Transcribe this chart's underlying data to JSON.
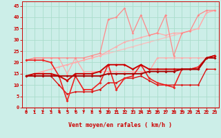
{
  "xlabel": "Vent moyen/en rafales ( km/h )",
  "background_color": "#cceee8",
  "grid_color": "#aaddcc",
  "x": [
    0,
    1,
    2,
    3,
    4,
    5,
    6,
    7,
    8,
    9,
    10,
    11,
    12,
    13,
    14,
    15,
    16,
    17,
    18,
    19,
    20,
    21,
    22,
    23
  ],
  "series": [
    {
      "y": [
        14,
        15,
        16,
        17,
        18,
        19,
        20,
        21,
        22,
        23,
        24,
        25,
        26,
        27,
        28,
        29,
        30,
        31,
        32,
        33,
        34,
        35,
        42,
        43
      ],
      "color": "#ffbbbb",
      "lw": 0.9,
      "marker": "D",
      "ms": 1.8,
      "zorder": 1
    },
    {
      "y": [
        14,
        15,
        16,
        17,
        18,
        19,
        20,
        21,
        22,
        23,
        25,
        27,
        29,
        30,
        31,
        32,
        33,
        32,
        33,
        33,
        34,
        35,
        42,
        43
      ],
      "color": "#ffaaaa",
      "lw": 0.9,
      "marker": "D",
      "ms": 1.8,
      "zorder": 2
    },
    {
      "y": [
        21,
        22,
        22,
        22,
        22,
        22,
        22,
        22,
        23,
        24,
        39,
        40,
        44,
        33,
        41,
        32,
        33,
        41,
        23,
        33,
        34,
        41,
        43,
        43
      ],
      "color": "#ff8888",
      "lw": 0.9,
      "marker": "D",
      "ms": 1.8,
      "zorder": 3
    },
    {
      "y": [
        21,
        22,
        22,
        22,
        22,
        15,
        22,
        16,
        16,
        16,
        16,
        16,
        16,
        16,
        16,
        16,
        22,
        22,
        22,
        22,
        22,
        22,
        22,
        22
      ],
      "color": "#ffaaaa",
      "lw": 0.9,
      "marker": "D",
      "ms": 1.8,
      "zorder": 2
    },
    {
      "y": [
        14,
        15,
        15,
        15,
        14,
        12,
        15,
        15,
        15,
        16,
        19,
        19,
        19,
        17,
        19,
        17,
        17,
        17,
        17,
        17,
        17,
        17,
        22,
        23
      ],
      "color": "#cc0000",
      "lw": 1.4,
      "marker": "D",
      "ms": 2.0,
      "zorder": 5
    },
    {
      "y": [
        14,
        14,
        14,
        14,
        14,
        14,
        14,
        14,
        14,
        14,
        15,
        15,
        15,
        15,
        15,
        16,
        16,
        16,
        16,
        17,
        17,
        17,
        22,
        22
      ],
      "color": "#aa0000",
      "lw": 1.4,
      "marker": "D",
      "ms": 2.0,
      "zorder": 5
    },
    {
      "y": [
        21,
        21,
        21,
        20,
        14,
        3,
        14,
        8,
        8,
        11,
        19,
        8,
        13,
        14,
        19,
        13,
        11,
        10,
        9,
        17,
        17,
        18,
        22,
        23
      ],
      "color": "#ee2222",
      "lw": 1.2,
      "marker": "D",
      "ms": 2.0,
      "zorder": 4
    },
    {
      "y": [
        14,
        14,
        14,
        14,
        10,
        6,
        7,
        7,
        7,
        8,
        11,
        11,
        13,
        13,
        14,
        12,
        10,
        10,
        10,
        10,
        10,
        10,
        17,
        17
      ],
      "color": "#dd1111",
      "lw": 1.0,
      "marker": "D",
      "ms": 1.8,
      "zorder": 3
    }
  ],
  "ylim": [
    0,
    47
  ],
  "xlim": [
    -0.5,
    23.5
  ],
  "yticks": [
    0,
    5,
    10,
    15,
    20,
    25,
    30,
    35,
    40,
    45
  ],
  "xticks": [
    0,
    1,
    2,
    3,
    4,
    5,
    6,
    7,
    8,
    9,
    10,
    11,
    12,
    13,
    14,
    15,
    16,
    17,
    18,
    19,
    20,
    21,
    22,
    23
  ],
  "tick_color": "#cc0000",
  "label_color": "#cc0000",
  "arrow_color": "#cc0000",
  "xlabel_fontsize": 6.0,
  "tick_fontsize": 5.0
}
